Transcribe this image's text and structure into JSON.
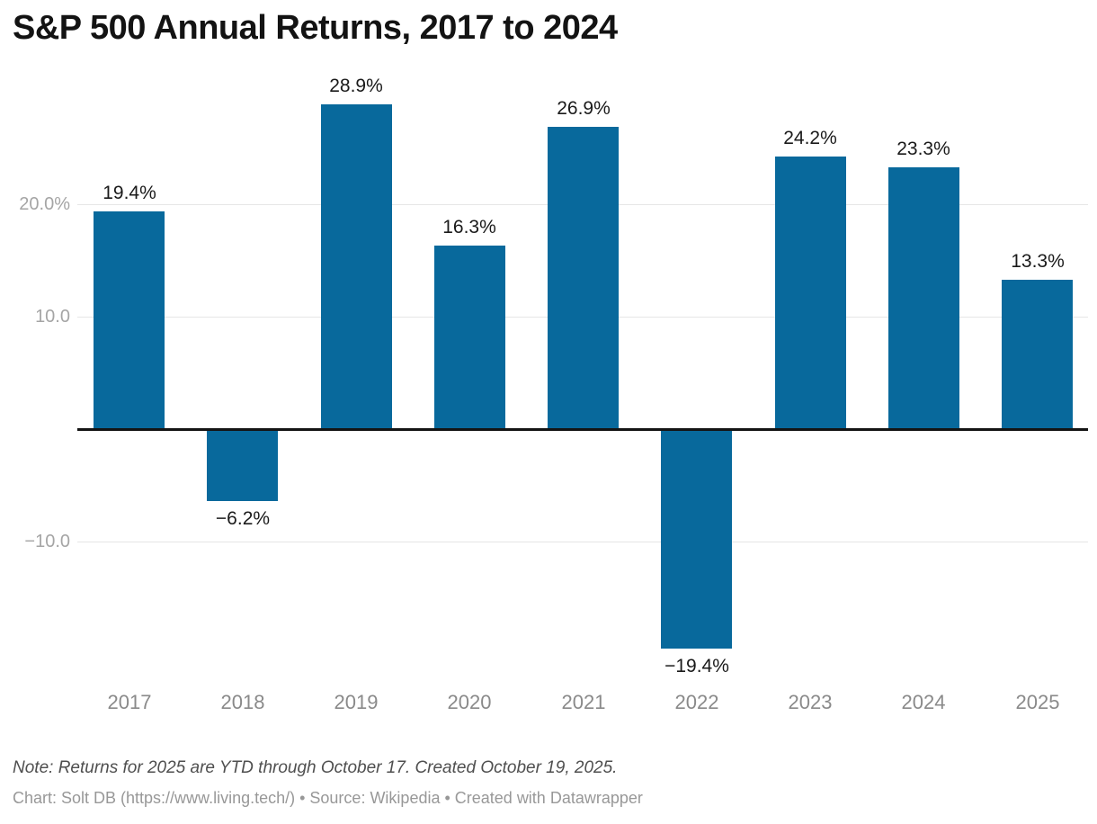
{
  "header": {
    "title": "S&P 500 Annual Returns, 2017 to 2024"
  },
  "footer": {
    "note": "Note: Returns for 2025 are YTD through October 17. Created October 19, 2025.",
    "byline": "Chart: Solt DB (https://www.living.tech/) • Source: Wikipedia • Created with Datawrapper"
  },
  "chart_data": {
    "type": "bar",
    "title": "S&P 500 Annual Returns, 2017 to 2024",
    "categories": [
      "2017",
      "2018",
      "2019",
      "2020",
      "2021",
      "2022",
      "2023",
      "2024",
      "2025"
    ],
    "values": [
      19.4,
      -6.2,
      28.9,
      16.3,
      26.9,
      -19.4,
      24.2,
      23.3,
      13.3
    ],
    "value_labels": [
      "19.4%",
      "−6.2%",
      "28.9%",
      "16.3%",
      "26.9%",
      "−19.4%",
      "24.2%",
      "23.3%",
      "13.3%"
    ],
    "xlabel": "",
    "ylabel": "",
    "ylim": [
      -22,
      30
    ],
    "y_ticks": [
      {
        "value": 20,
        "label": "20.0%"
      },
      {
        "value": 10,
        "label": "10.0"
      },
      {
        "value": -10,
        "label": "−10.0"
      }
    ],
    "grid": "horizontal-only",
    "legend": "none",
    "colors": {
      "bar": "#08699c",
      "zero_line": "#141414",
      "gridline": "#e6e6e6",
      "tick_label": "#a5a5a5",
      "category_label": "#8a8a8a",
      "value_label": "#1a1a1a"
    }
  }
}
